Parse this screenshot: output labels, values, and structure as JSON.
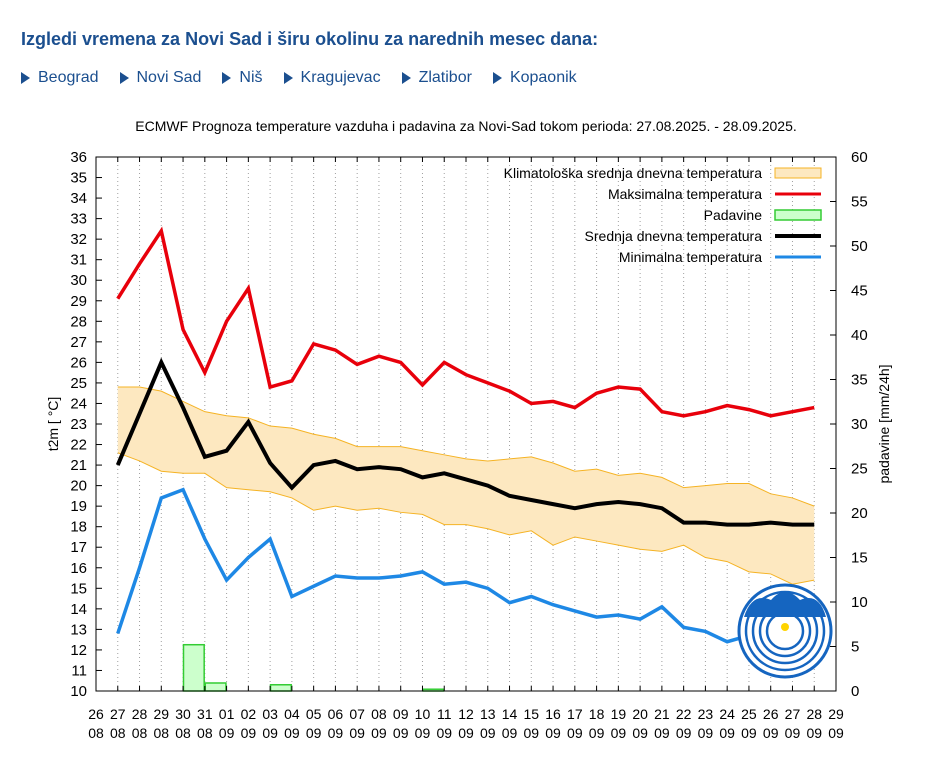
{
  "heading": "Izgledi vremena za Novi Sad i širu okolinu za narednih mesec dana:",
  "cities": [
    {
      "label": "Beograd"
    },
    {
      "label": "Novi Sad"
    },
    {
      "label": "Niš"
    },
    {
      "label": "Kragujevac"
    },
    {
      "label": "Zlatibor"
    },
    {
      "label": "Kopaonik"
    }
  ],
  "colors": {
    "link": "#1b4f8f",
    "max": "#e8000b",
    "mean": "#000000",
    "min": "#1e88e5",
    "clim_fill": "#fde8c0",
    "clim_line": "#f5b324",
    "rain_fill": "#ccffcc",
    "rain_line": "#33cc33"
  },
  "chart_data": {
    "type": "line",
    "title": "ECMWF Prognoza temperature vazduha i padavina za Novi-Sad tokom perioda: 27.08.2025. - 28.09.2025.",
    "ylabel": "t2m [ °C]",
    "y2label": "padavine [mm/24h]",
    "ylim": [
      10,
      36
    ],
    "y2lim": [
      0,
      60
    ],
    "yticks": [
      10,
      11,
      12,
      13,
      14,
      15,
      16,
      17,
      18,
      19,
      20,
      21,
      22,
      23,
      24,
      25,
      26,
      27,
      28,
      29,
      30,
      31,
      32,
      33,
      34,
      35,
      36
    ],
    "y2ticks": [
      0,
      5,
      10,
      15,
      20,
      25,
      30,
      35,
      40,
      45,
      50,
      55,
      60
    ],
    "x_days": [
      "26",
      "27",
      "28",
      "29",
      "30",
      "31",
      "01",
      "02",
      "03",
      "04",
      "05",
      "06",
      "07",
      "08",
      "09",
      "10",
      "11",
      "12",
      "13",
      "14",
      "15",
      "16",
      "17",
      "18",
      "19",
      "20",
      "21",
      "22",
      "23",
      "24",
      "25",
      "26",
      "27",
      "28",
      "29"
    ],
    "x_months": [
      "08",
      "08",
      "08",
      "08",
      "08",
      "08",
      "09",
      "09",
      "09",
      "09",
      "09",
      "09",
      "09",
      "09",
      "09",
      "09",
      "09",
      "09",
      "09",
      "09",
      "09",
      "09",
      "09",
      "09",
      "09",
      "09",
      "09",
      "09",
      "09",
      "09",
      "09",
      "09",
      "09",
      "09",
      "09"
    ],
    "legend_position": "top-right",
    "grid": "vertical dotted",
    "legend": [
      {
        "key": "clim",
        "label": "Klimatološka srednja dnevna temperatura",
        "style": "band"
      },
      {
        "key": "max",
        "label": "Maksimalna temperatura",
        "style": "line"
      },
      {
        "key": "rain",
        "label": "Padavine",
        "style": "bar"
      },
      {
        "key": "mean",
        "label": "Srednja dnevna temperatura",
        "style": "line"
      },
      {
        "key": "min",
        "label": "Minimalna temperatura",
        "style": "line"
      }
    ],
    "series": {
      "max": [
        29.1,
        30.8,
        32.4,
        27.6,
        25.5,
        28.0,
        29.6,
        24.8,
        25.1,
        26.9,
        26.6,
        25.9,
        26.3,
        26.0,
        24.9,
        26.0,
        25.4,
        25.0,
        24.6,
        24.0,
        24.1,
        23.8,
        24.5,
        24.8,
        24.7,
        23.6,
        23.4,
        23.6,
        23.9,
        23.7,
        23.4,
        23.6,
        23.8
      ],
      "mean": [
        21.0,
        23.5,
        26.0,
        23.8,
        21.4,
        21.7,
        23.1,
        21.1,
        19.9,
        21.0,
        21.2,
        20.8,
        20.9,
        20.8,
        20.4,
        20.6,
        20.3,
        20.0,
        19.5,
        19.3,
        19.1,
        18.9,
        19.1,
        19.2,
        19.1,
        18.9,
        18.2,
        18.2,
        18.1,
        18.1,
        18.2,
        18.1,
        18.1
      ],
      "min": [
        12.8,
        16.0,
        19.4,
        19.8,
        17.4,
        15.4,
        16.5,
        17.4,
        14.6,
        15.1,
        15.6,
        15.5,
        15.5,
        15.6,
        15.8,
        15.2,
        15.3,
        15.0,
        14.3,
        14.6,
        14.2,
        13.9,
        13.6,
        13.7,
        13.5,
        14.1,
        13.1,
        12.9,
        12.4,
        12.7,
        12.6,
        12.3,
        12.0
      ],
      "clim_upper": [
        24.8,
        24.8,
        24.6,
        24.1,
        23.6,
        23.4,
        23.3,
        22.9,
        22.8,
        22.5,
        22.3,
        21.9,
        21.9,
        21.9,
        21.7,
        21.5,
        21.3,
        21.2,
        21.3,
        21.4,
        21.1,
        20.7,
        20.8,
        20.5,
        20.6,
        20.4,
        19.9,
        20.0,
        20.1,
        20.1,
        19.6,
        19.4,
        19.0
      ],
      "clim_lower": [
        21.6,
        21.2,
        20.7,
        20.6,
        20.6,
        19.9,
        19.8,
        19.7,
        19.4,
        18.8,
        19.0,
        18.8,
        18.9,
        18.7,
        18.6,
        18.1,
        18.1,
        17.9,
        17.6,
        17.8,
        17.1,
        17.5,
        17.3,
        17.1,
        16.9,
        16.8,
        17.1,
        16.5,
        16.3,
        15.8,
        15.7,
        15.2,
        15.4
      ],
      "rain": [
        0,
        0,
        0,
        5.2,
        0.9,
        0,
        0,
        0.7,
        0,
        0,
        0,
        0,
        0,
        0,
        0.2,
        0,
        0,
        0,
        0,
        0,
        0,
        0,
        0,
        0,
        0,
        0,
        0,
        0,
        0,
        0,
        0,
        0,
        0
      ]
    }
  }
}
